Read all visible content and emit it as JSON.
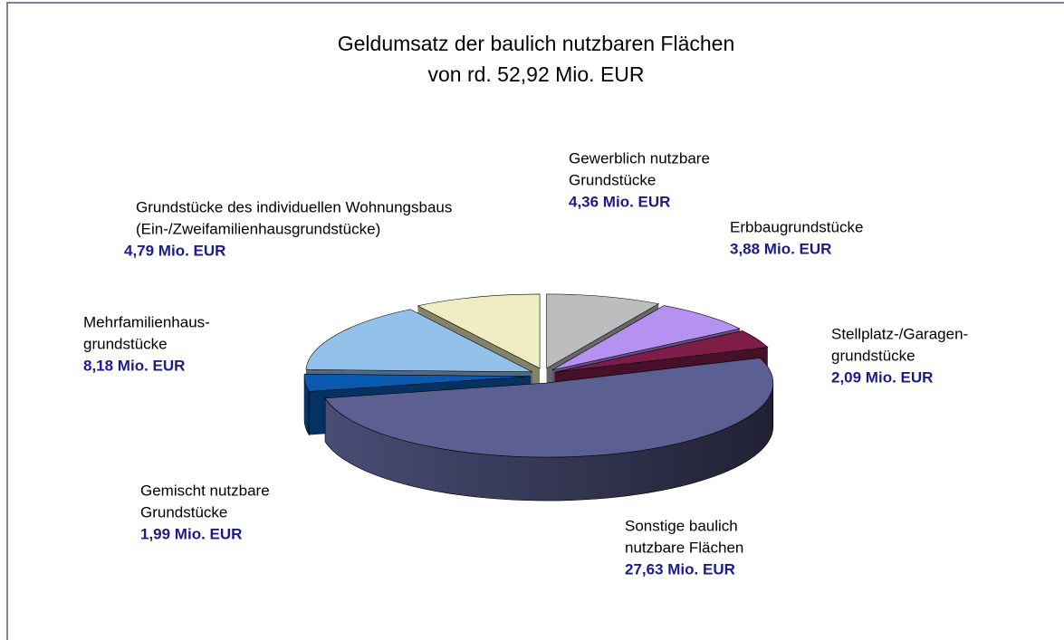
{
  "chart_data": {
    "type": "pie",
    "title": "Geldumsatz der baulich nutzbaren Flächen",
    "subtitle": "von rd. 52,92 Mio. EUR",
    "categories": [
      [
        "Gewerblich nutzbare",
        "Grundstücke"
      ],
      [
        "Erbbaugrundstücke"
      ],
      [
        "Stellplatz-/Garagen-",
        "grundstücke"
      ],
      [
        "Sonstige baulich",
        "nutzbare Flächen"
      ],
      [
        "Gemischt nutzbare",
        "Grundstücke"
      ],
      [
        "Mehrfamilienhaus-",
        "grundstücke"
      ],
      [
        "Grundstücke des individuellen Wohnungsbaus",
        "(Ein-/Zweifamilienhausgrundstücke)"
      ]
    ],
    "values": [
      4.36,
      3.88,
      2.09,
      27.63,
      1.99,
      8.18,
      4.79
    ],
    "value_labels": [
      "4,36 Mio. EUR",
      "3,88 Mio. EUR",
      "2,09 Mio. EUR",
      "27,63 Mio. EUR",
      "1,99 Mio. EUR",
      "8,18 Mio. EUR",
      "4,79 Mio. EUR"
    ],
    "colors": [
      "#bdbdbd",
      "#b592f2",
      "#7d1d48",
      "#5c5f92",
      "#0a5bb0",
      "#93c1ea",
      "#eeeec2"
    ]
  }
}
